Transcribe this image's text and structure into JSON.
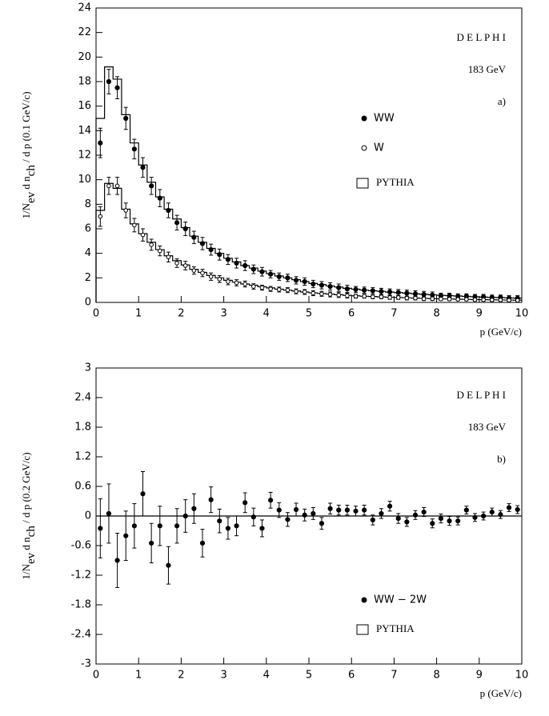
{
  "chart_data": [
    {
      "type": "errorbar",
      "annotations": [
        "D E L P H I",
        "183 GeV",
        "a)"
      ],
      "x_label": "p (GeV/c)",
      "y_label_parts": [
        "1/N",
        "ev",
        " d n",
        "ch",
        " / d p (0.1 GeV/c)"
      ],
      "x": [
        0.1,
        0.3,
        0.5,
        0.7,
        0.9,
        1.1,
        1.3,
        1.5,
        1.7,
        1.9,
        2.1,
        2.3,
        2.5,
        2.7,
        2.9,
        3.1,
        3.3,
        3.5,
        3.7,
        3.9,
        4.1,
        4.3,
        4.5,
        4.7,
        4.9,
        5.1,
        5.3,
        5.5,
        5.7,
        5.9,
        6.1,
        6.3,
        6.5,
        6.7,
        6.9,
        7.1,
        7.3,
        7.5,
        7.7,
        7.9,
        8.1,
        8.3,
        8.5,
        8.7,
        8.9,
        9.1,
        9.3,
        9.5,
        9.7,
        9.9
      ],
      "series": [
        {
          "name": "WW",
          "marker": "filled",
          "color": "#000000",
          "values": [
            13,
            18,
            17.5,
            15,
            12.5,
            11,
            9.5,
            8.5,
            7.5,
            6.5,
            6,
            5.3,
            4.8,
            4.3,
            3.9,
            3.5,
            3.2,
            3,
            2.7,
            2.5,
            2.3,
            2.1,
            2,
            1.8,
            1.7,
            1.5,
            1.4,
            1.3,
            1.2,
            1.1,
            1.05,
            1,
            0.95,
            0.9,
            0.85,
            0.8,
            0.75,
            0.7,
            0.65,
            0.6,
            0.55,
            0.55,
            0.5,
            0.5,
            0.45,
            0.45,
            0.4,
            0.4,
            0.35,
            0.35
          ],
          "errors": [
            1.2,
            1,
            0.9,
            0.9,
            0.8,
            0.8,
            0.7,
            0.7,
            0.6,
            0.6,
            0.55,
            0.5,
            0.5,
            0.45,
            0.45,
            0.4,
            0.4,
            0.4,
            0.35,
            0.35,
            0.3,
            0.3,
            0.3,
            0.3,
            0.3,
            0.3,
            0.3,
            0.3,
            0.3,
            0.3,
            0.25,
            0.25,
            0.25,
            0.25,
            0.25,
            0.25,
            0.25,
            0.25,
            0.25,
            0.25,
            0.2,
            0.2,
            0.2,
            0.2,
            0.2,
            0.2,
            0.2,
            0.2,
            0.2,
            0.2
          ]
        },
        {
          "name": "W",
          "marker": "open",
          "color": "#000000",
          "values": [
            7,
            9.5,
            9.5,
            7.5,
            6.3,
            5.5,
            4.7,
            4.2,
            3.7,
            3.2,
            3,
            2.6,
            2.4,
            2.1,
            1.9,
            1.7,
            1.6,
            1.5,
            1.3,
            1.2,
            1.1,
            1.05,
            1,
            0.9,
            0.85,
            0.75,
            0.7,
            0.65,
            0.6,
            0.55,
            0.5,
            0.5,
            0.45,
            0.45,
            0.4,
            0.4,
            0.35,
            0.35,
            0.3,
            0.3,
            0.28,
            0.27,
            0.25,
            0.25,
            0.22,
            0.22,
            0.2,
            0.2,
            0.18,
            0.17
          ],
          "errors": [
            0.8,
            0.7,
            0.7,
            0.6,
            0.55,
            0.5,
            0.45,
            0.4,
            0.4,
            0.35,
            0.35,
            0.3,
            0.3,
            0.3,
            0.28,
            0.26,
            0.25,
            0.24,
            0.22,
            0.2,
            0.2,
            0.2,
            0.2,
            0.2,
            0.2,
            0.2,
            0.2,
            0.2,
            0.2,
            0.2,
            0.15,
            0.15,
            0.15,
            0.15,
            0.15,
            0.15,
            0.15,
            0.15,
            0.15,
            0.15,
            0.12,
            0.12,
            0.12,
            0.12,
            0.12,
            0.12,
            0.12,
            0.12,
            0.12,
            0.12
          ]
        }
      ],
      "model": {
        "name": "PYTHIA",
        "color": "#000000",
        "curves": [
          [
            15,
            19.2,
            18.2,
            15.3,
            13,
            11.2,
            9.8,
            8.6,
            7.6,
            6.8,
            6.1,
            5.4,
            4.9,
            4.4,
            4,
            3.6,
            3.3,
            3,
            2.8,
            2.55,
            2.35,
            2.15,
            2,
            1.85,
            1.7,
            1.55,
            1.45,
            1.35,
            1.25,
            1.15,
            1.08,
            1,
            0.95,
            0.9,
            0.84,
            0.8,
            0.75,
            0.7,
            0.66,
            0.62,
            0.58,
            0.55,
            0.52,
            0.49,
            0.46,
            0.43,
            0.41,
            0.39,
            0.37,
            0.35
          ],
          [
            7.5,
            9.7,
            9.3,
            7.6,
            6.4,
            5.6,
            4.9,
            4.3,
            3.8,
            3.4,
            3.05,
            2.7,
            2.45,
            2.2,
            2,
            1.8,
            1.65,
            1.5,
            1.4,
            1.28,
            1.18,
            1.08,
            1,
            0.93,
            0.85,
            0.78,
            0.73,
            0.68,
            0.63,
            0.58,
            0.54,
            0.5,
            0.48,
            0.45,
            0.42,
            0.4,
            0.38,
            0.35,
            0.33,
            0.31,
            0.29,
            0.28,
            0.26,
            0.25,
            0.23,
            0.22,
            0.21,
            0.2,
            0.19,
            0.18
          ]
        ]
      },
      "xlim": [
        0,
        10
      ],
      "ylim": [
        0,
        24
      ],
      "xticks": [
        0,
        1,
        2,
        3,
        4,
        5,
        6,
        7,
        8,
        9,
        10
      ],
      "yticks": [
        0,
        2,
        4,
        6,
        8,
        10,
        12,
        14,
        16,
        18,
        20,
        22,
        24
      ]
    },
    {
      "type": "errorbar",
      "annotations": [
        "D E L P H I",
        "183 GeV",
        "b)"
      ],
      "x_label": "p (GeV/c)",
      "y_label_parts": [
        "1/N",
        "ev",
        " d n",
        "ch",
        " / d p (0.2 GeV/c)"
      ],
      "x": [
        0.1,
        0.3,
        0.5,
        0.7,
        0.9,
        1.1,
        1.3,
        1.5,
        1.7,
        1.9,
        2.1,
        2.3,
        2.5,
        2.7,
        2.9,
        3.1,
        3.3,
        3.5,
        3.7,
        3.9,
        4.1,
        4.3,
        4.5,
        4.7,
        4.9,
        5.1,
        5.3,
        5.5,
        5.7,
        5.9,
        6.1,
        6.3,
        6.5,
        6.7,
        6.9,
        7.1,
        7.3,
        7.5,
        7.7,
        7.9,
        8.1,
        8.3,
        8.5,
        8.7,
        8.9,
        9.1,
        9.3,
        9.5,
        9.7,
        9.9
      ],
      "series": [
        {
          "name": "WW − 2W",
          "marker": "filled",
          "color": "#000000",
          "values": [
            -0.25,
            0.05,
            -0.9,
            -0.4,
            -0.2,
            0.45,
            -0.55,
            -0.2,
            -1.0,
            -0.2,
            0,
            0.15,
            -0.55,
            0.33,
            -0.1,
            -0.25,
            -0.2,
            0.27,
            -0.02,
            -0.25,
            0.32,
            0.12,
            -0.07,
            0.13,
            0.02,
            0.05,
            -0.15,
            0.15,
            0.12,
            0.12,
            0.1,
            0.12,
            -0.08,
            0.05,
            0.2,
            -0.05,
            -0.12,
            0.02,
            0.08,
            -0.15,
            -0.05,
            -0.1,
            -0.1,
            0.12,
            -0.03,
            0,
            0.08,
            0.03,
            0.17,
            0.13
          ],
          "errors": [
            0.6,
            0.6,
            0.55,
            0.5,
            0.45,
            0.45,
            0.4,
            0.4,
            0.38,
            0.35,
            0.33,
            0.3,
            0.28,
            0.26,
            0.24,
            0.22,
            0.2,
            0.2,
            0.18,
            0.17,
            0.16,
            0.15,
            0.14,
            0.13,
            0.12,
            0.12,
            0.12,
            0.11,
            0.1,
            0.1,
            0.1,
            0.1,
            0.1,
            0.1,
            0.1,
            0.1,
            0.09,
            0.09,
            0.09,
            0.09,
            0.09,
            0.09,
            0.08,
            0.08,
            0.08,
            0.08,
            0.08,
            0.08,
            0.08,
            0.08
          ]
        }
      ],
      "model": {
        "name": "PYTHIA",
        "color": "#000000",
        "curves": [
          [
            0,
            0,
            0,
            0,
            0,
            0,
            0,
            0,
            0,
            0,
            0,
            0,
            0,
            0,
            0,
            0,
            0,
            0,
            0,
            0,
            0,
            0,
            0,
            0,
            0,
            0,
            0,
            0,
            0,
            0,
            0,
            0,
            0,
            0,
            0,
            0,
            0,
            0,
            0,
            0,
            0,
            0,
            0,
            0,
            0,
            0,
            0,
            0,
            0,
            0
          ]
        ]
      },
      "xlim": [
        0,
        10
      ],
      "ylim": [
        -3,
        3
      ],
      "xticks": [
        0,
        1,
        2,
        3,
        4,
        5,
        6,
        7,
        8,
        9,
        10
      ],
      "yticks": [
        -3,
        -2.4,
        -1.8,
        -1.2,
        -0.6,
        0,
        0.6,
        1.2,
        1.8,
        2.4,
        3
      ]
    }
  ]
}
